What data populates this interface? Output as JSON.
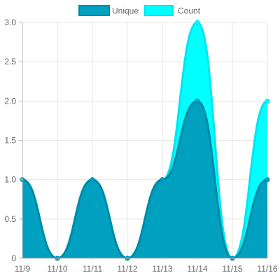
{
  "chart_data": {
    "type": "area",
    "categories": [
      "11/9",
      "11/10",
      "11/11",
      "11/12",
      "11/13",
      "11/14",
      "11/15",
      "11/16"
    ],
    "series": [
      {
        "name": "Unique",
        "values": [
          1,
          0,
          1,
          0,
          1,
          2,
          0,
          1
        ],
        "fill": "#00A0C0",
        "stroke": "#0089A6"
      },
      {
        "name": "Count",
        "values": [
          1,
          0,
          1,
          0,
          1,
          3,
          0,
          2
        ],
        "fill": "#00FFFF",
        "stroke": "#00E5F0"
      }
    ],
    "ylim": [
      0,
      3
    ],
    "yticks": [
      "0",
      "0.5",
      "1.0",
      "1.5",
      "2.0",
      "2.5",
      "3.0"
    ],
    "ytick_values": [
      0,
      0.5,
      1,
      1.5,
      2,
      2.5,
      3
    ],
    "grid": true,
    "legend_position": "top-center",
    "curve": "smooth"
  }
}
